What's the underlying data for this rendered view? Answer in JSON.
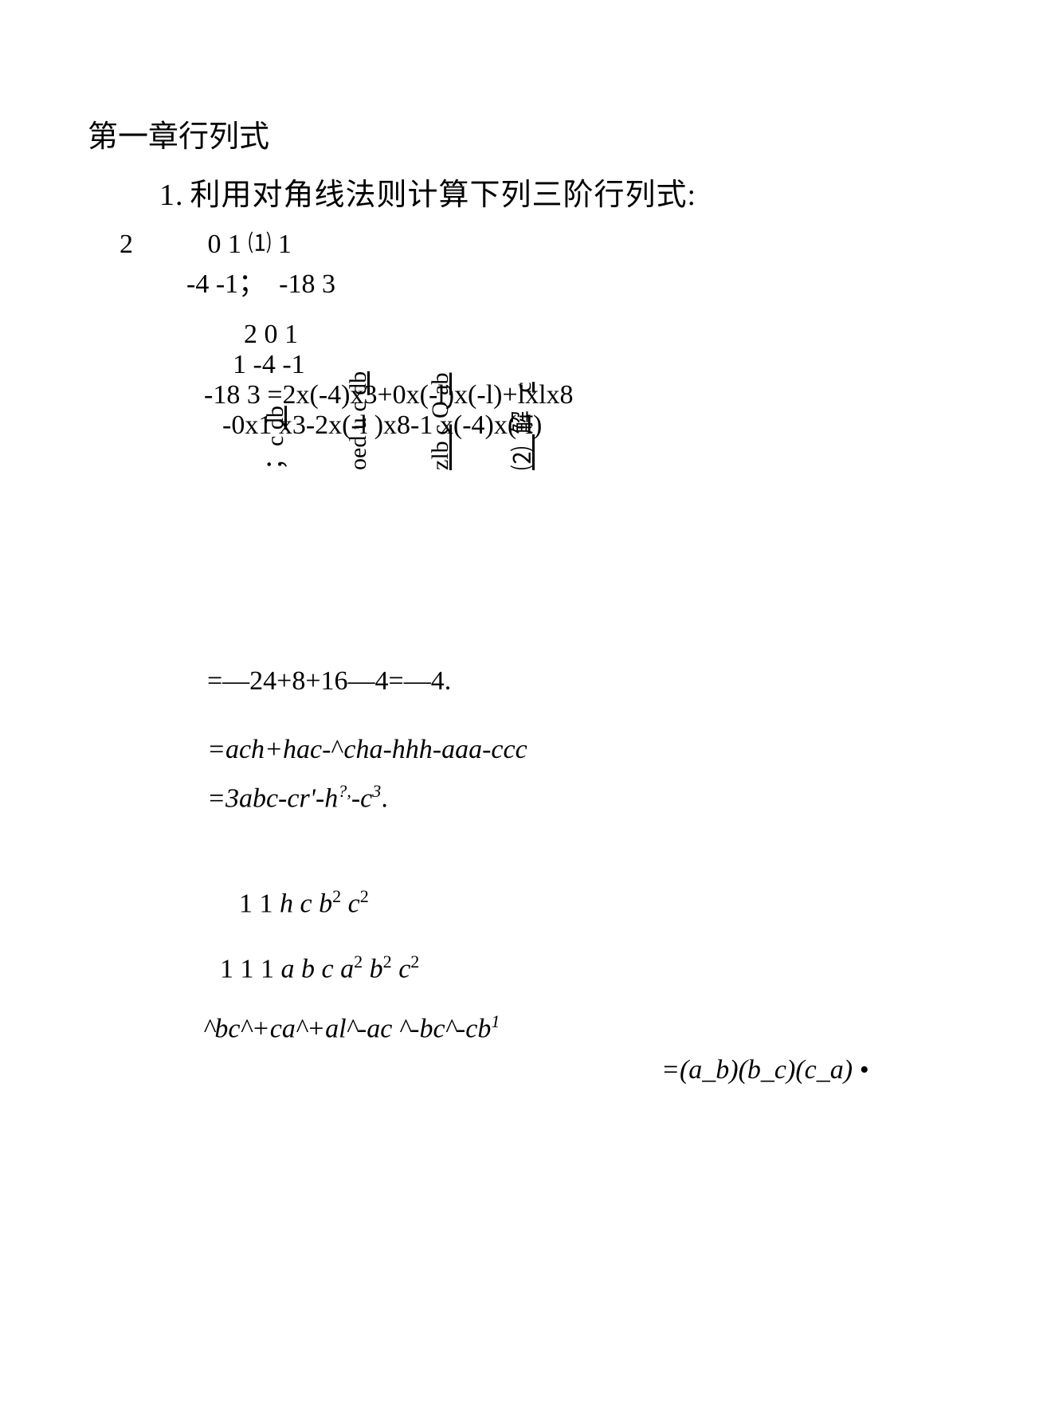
{
  "chapter": "第一章行列式",
  "problem": {
    "number": "1.",
    "text": "利用对角线法则计算下列三阶行列式:"
  },
  "lines": {
    "l1_left": "2",
    "l1_mid": "0 1",
    "l1_marker": "⑴",
    "l1_right": "1",
    "l2": "-4 -1；  -18 3",
    "l3": "2 0 1",
    "l4": "1 -4 -1",
    "l5": "-18 3 =2x(-4)x3+0x(-l)x(-l)+lxlx8",
    "l6": "-0x1 x3-2x(-l )x8-1 x(-4)x(-l)",
    "l7": "=—24+8+16—4=—4.",
    "l8_a": "=ach+hac-",
    "l8_b": "^",
    "l8_c": "cha-hhh-aaa-ccc",
    "l9_a": "=3abc-cr'-h",
    "l9_sup1": "?,",
    "l9_b": "-c",
    "l9_sup2": "3",
    "l9_c": ".",
    "l10_a": "1 1 ",
    "l10_b": "h c b",
    "l10_s1": "2",
    "l10_c": " c",
    "l10_s2": "2",
    "l11_a": "1 1 1 ",
    "l11_b": "a b c a",
    "l11_s1": "2",
    "l11_c": " b",
    "l11_s2": "2",
    "l11_d": " c",
    "l11_s3": "2",
    "l12_a": "^bc^+ca^+al^-ac   ^-bc^-cb",
    "l12_s1": "1",
    "l13": "=(a_b)(b_c)(c_a) • "
  },
  "rotated": {
    "r1a": "；c ",
    "r1b": "db",
    "r2a": "oed u c ",
    "r2b": "db",
    "r3a": "zlb c",
    "r3b": " Q ",
    "r3c": "ab",
    "r4a": "⑵  ",
    "r4b": "解",
    "r4c": "   ",
    "r4d": "c"
  },
  "colors": {
    "text": "#000000",
    "background": "#ffffff"
  },
  "fonts": {
    "cjk": "SimSun",
    "latin": "Times New Roman",
    "base_size_pt": 26
  }
}
